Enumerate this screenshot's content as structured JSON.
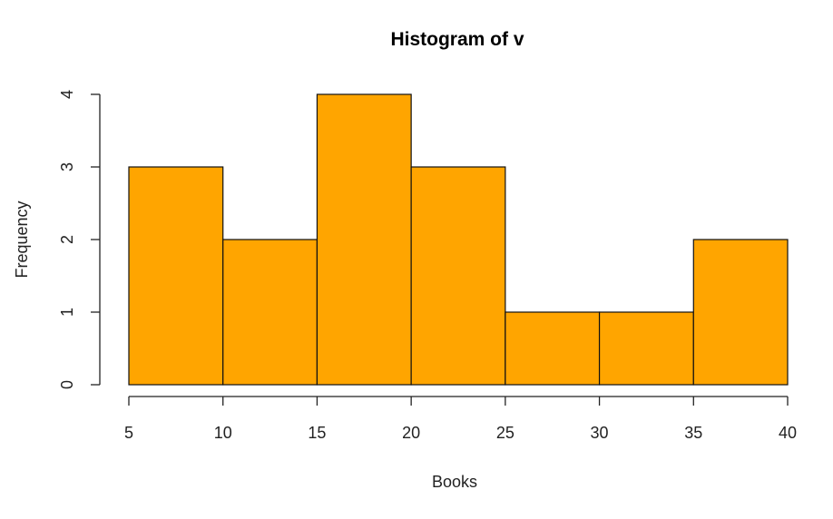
{
  "chart_data": {
    "type": "bar",
    "title": "Histogram of v",
    "xlabel": "Books",
    "ylabel": "Frequency",
    "bins": [
      [
        5,
        10
      ],
      [
        10,
        15
      ],
      [
        15,
        20
      ],
      [
        20,
        25
      ],
      [
        25,
        30
      ],
      [
        30,
        35
      ],
      [
        35,
        40
      ]
    ],
    "values": [
      3,
      2,
      4,
      3,
      1,
      1,
      2
    ],
    "xticks": [
      5,
      10,
      15,
      20,
      25,
      30,
      35,
      40
    ],
    "yticks": [
      0,
      1,
      2,
      3,
      4
    ],
    "xlim": [
      5,
      40
    ],
    "ylim": [
      0,
      4
    ],
    "grid": false,
    "colors": {
      "bar_fill": "#FFA500",
      "bar_stroke": "#111111"
    }
  }
}
